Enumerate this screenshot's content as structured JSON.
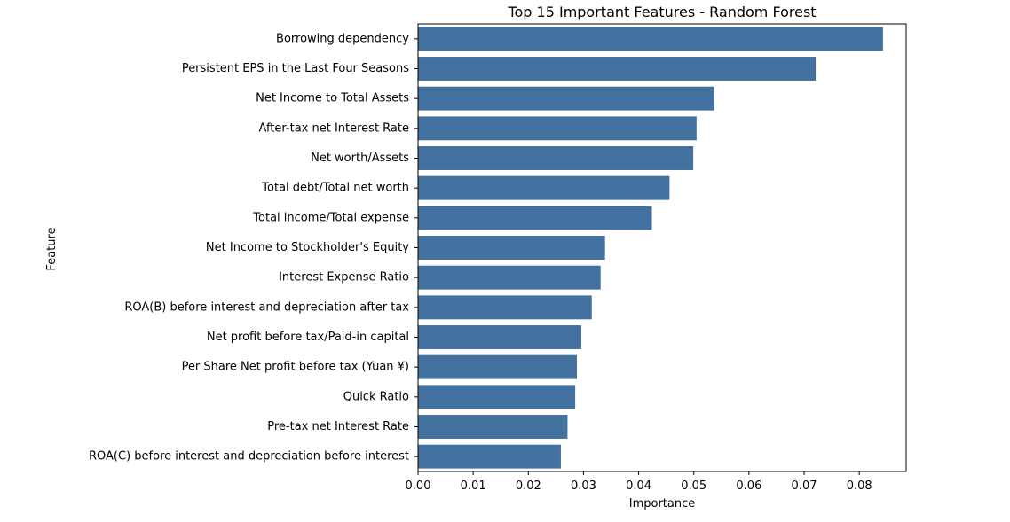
{
  "chart_data": {
    "type": "bar",
    "orientation": "horizontal",
    "title": "Top 15 Important Features - Random Forest",
    "xlabel": "Importance",
    "ylabel": "Feature",
    "xlim": [
      0,
      0.0885
    ],
    "xticks": [
      "0.00",
      "0.01",
      "0.02",
      "0.03",
      "0.04",
      "0.05",
      "0.06",
      "0.07",
      "0.08"
    ],
    "grid": false,
    "legend": "none",
    "bar_color": "#4472a0",
    "categories": [
      " Borrowing dependency",
      " Persistent EPS in the Last Four Seasons",
      " Net Income to Total Assets",
      " After-tax net Interest Rate",
      " Net worth/Assets",
      " Total debt/Total net worth",
      " Total income/Total expense",
      " Net Income to Stockholder's Equity",
      " Interest Expense Ratio",
      " ROA(B) before interest and depreciation after tax",
      " Net profit before tax/Paid-in capital",
      " Per Share Net profit before tax (Yuan ¥)",
      " Quick Ratio",
      " Pre-tax net Interest Rate",
      " ROA(C) before interest and depreciation before interest"
    ],
    "values": [
      0.0843,
      0.0721,
      0.0537,
      0.0505,
      0.0499,
      0.0456,
      0.0424,
      0.0339,
      0.0331,
      0.0315,
      0.0296,
      0.0288,
      0.0285,
      0.0271,
      0.0259
    ]
  }
}
